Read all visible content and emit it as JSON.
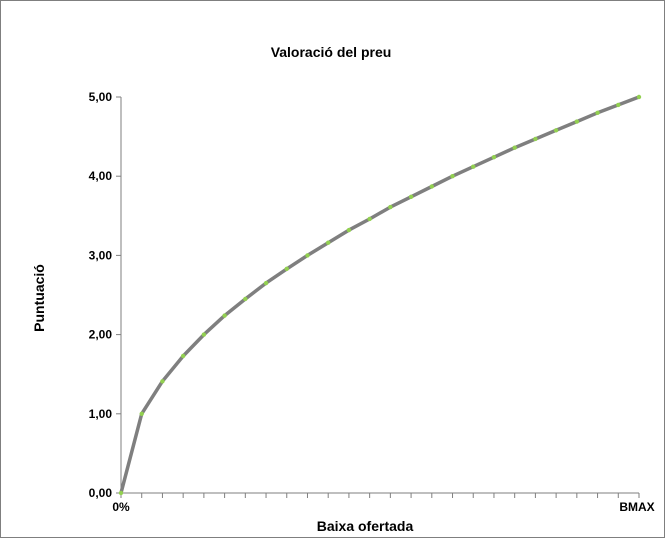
{
  "chart_data": {
    "type": "line",
    "title": "Valoració del preu",
    "xlabel": "Baixa ofertada",
    "ylabel": "Puntuació",
    "x_tick_labels": [
      "0%",
      "BMAX"
    ],
    "ylim": [
      0,
      5
    ],
    "y_ticks": [
      0,
      1,
      2,
      3,
      4,
      5
    ],
    "y_tick_labels": [
      "0,00",
      "1,00",
      "2,00",
      "3,00",
      "4,00",
      "5,00"
    ],
    "grid": false,
    "series": [
      {
        "color": "#7f7f7f",
        "marker_color": "#92d050",
        "x": [
          0,
          1,
          2,
          3,
          4,
          5,
          6,
          7,
          8,
          9,
          10,
          11,
          12,
          13,
          14,
          15,
          16,
          17,
          18,
          19,
          20,
          21,
          22,
          23,
          24,
          25
        ],
        "values": [
          0.0,
          1.0,
          1.41,
          1.73,
          2.0,
          2.24,
          2.45,
          2.65,
          2.83,
          3.0,
          3.16,
          3.32,
          3.46,
          3.61,
          3.74,
          3.87,
          4.0,
          4.12,
          4.24,
          4.36,
          4.47,
          4.58,
          4.69,
          4.8,
          4.9,
          5.0
        ]
      }
    ]
  }
}
